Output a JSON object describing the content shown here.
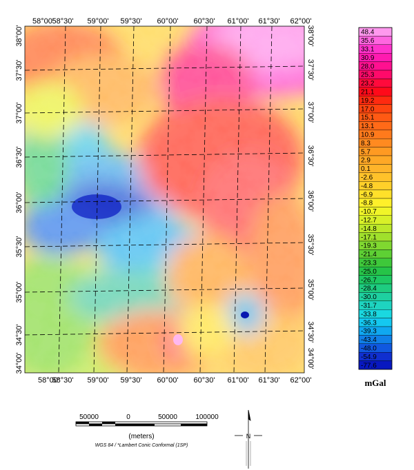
{
  "map": {
    "top_lon_labels": [
      "58°00'",
      "58°30'",
      "59°00'",
      "59°30'",
      "60°00'",
      "60°30'",
      "61°00'",
      "61°30'",
      "62°00'"
    ],
    "bottom_lon_labels": [
      "58°00'",
      "58°30'",
      "59°00'",
      "59°30'",
      "60°00'",
      "60°30'",
      "61°00'",
      "61°30'",
      "62°00'"
    ],
    "left_lat_labels": [
      "38°00'",
      "37°30'",
      "37°00'",
      "36°30'",
      "36°00'",
      "35°30'",
      "35°00'",
      "34°30'",
      "34°00'"
    ],
    "right_lat_labels": [
      "38°00'",
      "37°30'",
      "37°00'",
      "36°30'",
      "36°00'",
      "35°30'",
      "35°00'",
      "34°30'",
      "34°00'"
    ]
  },
  "legend": {
    "unit": "mGal",
    "values": [
      "48.4",
      "35.6",
      "33.1",
      "30.9",
      "28.0",
      "25.3",
      "23.2",
      "21.1",
      "19.2",
      "17.0",
      "15.1",
      "13.1",
      "10.9",
      "8.3",
      "5.7",
      "2.9",
      "0.1",
      "-2.6",
      "-4.8",
      "-6.9",
      "-8.8",
      "-10.7",
      "-12.7",
      "-14.8",
      "-17.1",
      "-19.3",
      "-21.4",
      "-23.3",
      "-25.0",
      "-26.7",
      "-28.4",
      "-30.0",
      "-31.7",
      "-33.8",
      "-36.3",
      "-39.3",
      "-43.4",
      "-48.0",
      "-54.9",
      "-77.6"
    ],
    "colors": [
      "#ff99ee",
      "#ff66e0",
      "#ff33cc",
      "#ff1ab0",
      "#ff1090",
      "#ff0a6a",
      "#ff0a3c",
      "#ff0a1a",
      "#ff2a10",
      "#ff4410",
      "#ff5a14",
      "#ff6a18",
      "#ff7a1c",
      "#ff8a20",
      "#ff9a22",
      "#ffa826",
      "#ffb42a",
      "#ffc22a",
      "#ffd02a",
      "#ffe02a",
      "#fff02a",
      "#f0f528",
      "#d8f028",
      "#bce82a",
      "#a0e02c",
      "#80d830",
      "#5ed034",
      "#3ec83a",
      "#26c448",
      "#1ec862",
      "#1ecc80",
      "#1ed0a0",
      "#1ed4c0",
      "#1ad8e0",
      "#14c8f0",
      "#10a8f0",
      "#1080e8",
      "#1058e0",
      "#1030d0",
      "#0818c0"
    ]
  },
  "scale_bar": {
    "ticks": [
      "50000",
      "0",
      "50000",
      "100000"
    ],
    "unit_label": "(meters)",
    "projection": "WGS 84 / *Lambert Conic Conformal (1SP)"
  },
  "north_arrow": {
    "label": "N"
  }
}
